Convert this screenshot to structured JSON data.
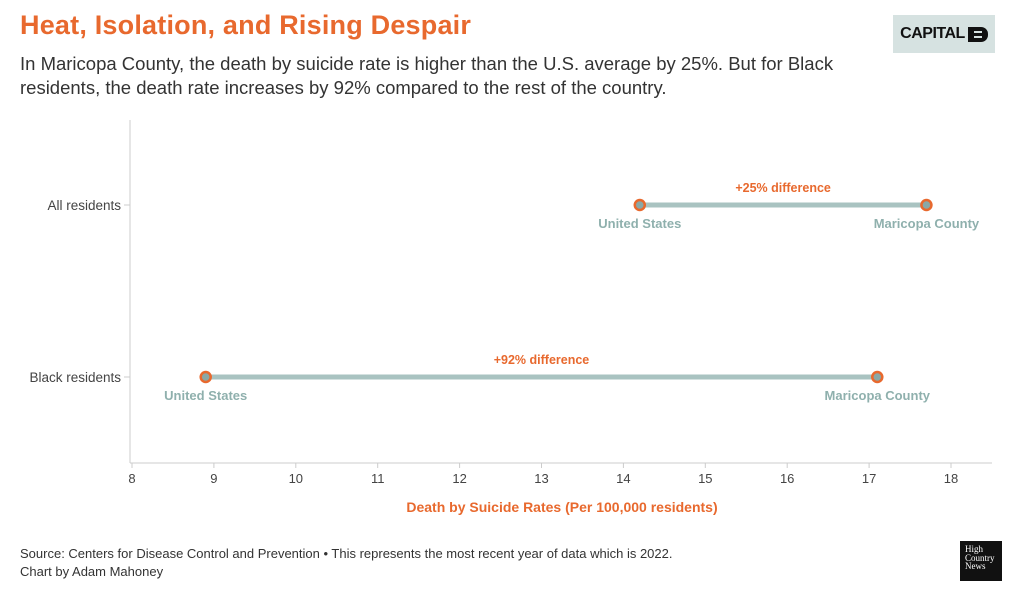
{
  "header": {
    "title": "Heat, Isolation, and Rising Despair",
    "subtitle": "In Maricopa County, the death by suicide rate is higher than the U.S. average by 25%. But for Black residents, the death rate increases by 92% compared to the rest of the country.",
    "brand": "CAPITAL"
  },
  "footer": {
    "source": "Source: Centers for Disease Control and Prevention • This represents the most recent year of data which is 2022.",
    "credit": "Chart by Adam Mahoney",
    "publisher_logo": [
      "High",
      "Country",
      "News"
    ]
  },
  "colors": {
    "title": "#e8692e",
    "accent": "#e8692e",
    "line": "#a9c3c1",
    "point_label": "#8fb0ad",
    "axis": "#cccccc",
    "text": "#333333"
  },
  "chart_data": {
    "type": "dumbbell",
    "xlabel": "Death by Suicide Rates (Per 100,000 residents)",
    "xlim": [
      8,
      18.5
    ],
    "xticks": [
      8,
      9,
      10,
      11,
      12,
      13,
      14,
      15,
      16,
      17,
      18
    ],
    "rows": [
      {
        "category": "All residents",
        "start": {
          "label": "United States",
          "value": 14.2
        },
        "end": {
          "label": "Maricopa County",
          "value": 17.7
        },
        "annotation": "+25% difference"
      },
      {
        "category": "Black residents",
        "start": {
          "label": "United States",
          "value": 8.9
        },
        "end": {
          "label": "Maricopa County",
          "value": 17.1
        },
        "annotation": "+92% difference"
      }
    ]
  }
}
